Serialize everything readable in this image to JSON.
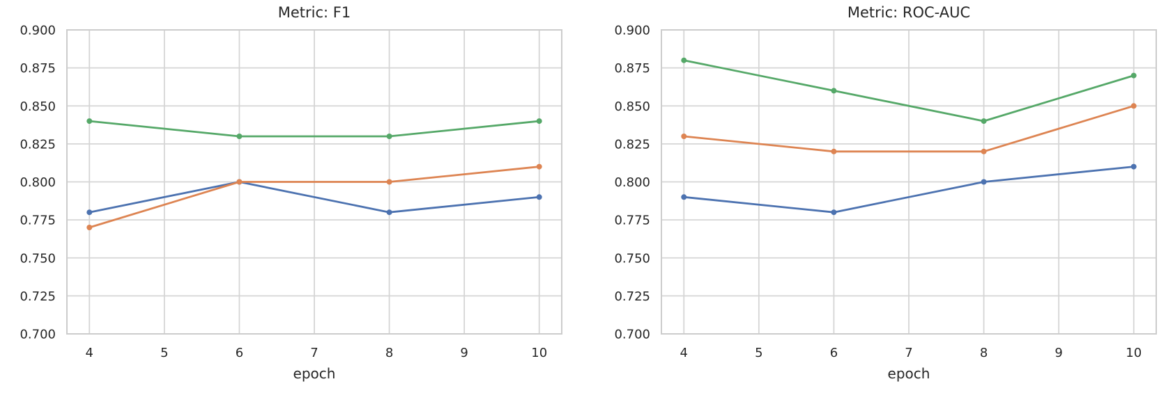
{
  "page": {
    "background_color": "#ffffff",
    "text_color": "#262626",
    "grid_color": "#d5d5d5",
    "spine_color": "#cccccc"
  },
  "chart_data": [
    {
      "type": "line",
      "title": "Metric: F1",
      "xlabel": "epoch",
      "ylabel": "",
      "x": [
        4,
        6,
        8,
        10
      ],
      "xticks": [
        4,
        5,
        6,
        7,
        8,
        9,
        10
      ],
      "xlim": [
        3.7,
        10.3
      ],
      "ylim": [
        0.7,
        0.9
      ],
      "ytick_labels": [
        "0.700",
        "0.725",
        "0.750",
        "0.775",
        "0.800",
        "0.825",
        "0.850",
        "0.875",
        "0.900"
      ],
      "grid": true,
      "legend_position": "none",
      "series": [
        {
          "name": "blue",
          "color": "#4C72B0",
          "values": [
            0.78,
            0.8,
            0.78,
            0.79
          ]
        },
        {
          "name": "orange",
          "color": "#DD8452",
          "values": [
            0.77,
            0.8,
            0.8,
            0.81
          ]
        },
        {
          "name": "green",
          "color": "#55A868",
          "values": [
            0.84,
            0.83,
            0.83,
            0.84
          ]
        }
      ]
    },
    {
      "type": "line",
      "title": "Metric: ROC-AUC",
      "xlabel": "epoch",
      "ylabel": "",
      "x": [
        4,
        6,
        8,
        10
      ],
      "xticks": [
        4,
        5,
        6,
        7,
        8,
        9,
        10
      ],
      "xlim": [
        3.7,
        10.3
      ],
      "ylim": [
        0.7,
        0.9
      ],
      "ytick_labels": [
        "0.700",
        "0.725",
        "0.750",
        "0.775",
        "0.800",
        "0.825",
        "0.850",
        "0.875",
        "0.900"
      ],
      "grid": true,
      "legend_position": "none",
      "series": [
        {
          "name": "blue",
          "color": "#4C72B0",
          "values": [
            0.79,
            0.78,
            0.8,
            0.81
          ]
        },
        {
          "name": "orange",
          "color": "#DD8452",
          "values": [
            0.83,
            0.82,
            0.82,
            0.85
          ]
        },
        {
          "name": "green",
          "color": "#55A868",
          "values": [
            0.88,
            0.86,
            0.84,
            0.87
          ]
        }
      ]
    }
  ]
}
